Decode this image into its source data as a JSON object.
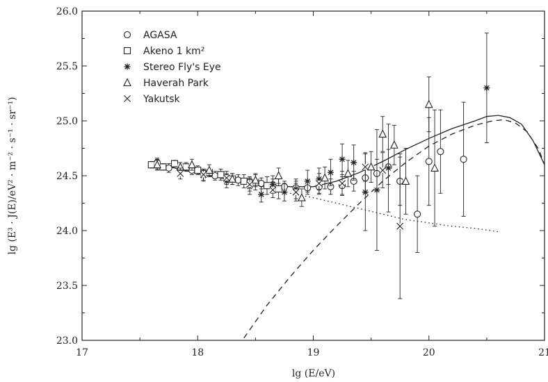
{
  "chart_data": {
    "type": "scatter",
    "xlabel": "lg (E/eV)",
    "ylabel": "lg (E³ · J(E)/eV² · m⁻² · s⁻¹ · sr⁻¹)",
    "xlim": [
      17,
      21
    ],
    "ylim": [
      23.0,
      26.0
    ],
    "x_ticks": [
      "17",
      "18",
      "19",
      "20",
      "21"
    ],
    "y_ticks": [
      "23.0",
      "23.5",
      "24.0",
      "24.5",
      "25.0",
      "25.5",
      "26.0"
    ],
    "legend_position": "top-left",
    "series": [
      {
        "name": "AGASA",
        "marker": "circle",
        "points": [
          {
            "x": 17.65,
            "y": 24.62,
            "err": 0.04
          },
          {
            "x": 17.75,
            "y": 24.57,
            "err": 0.04
          },
          {
            "x": 17.85,
            "y": 24.56,
            "err": 0.04
          },
          {
            "x": 17.95,
            "y": 24.55,
            "err": 0.04
          },
          {
            "x": 18.05,
            "y": 24.52,
            "err": 0.04
          },
          {
            "x": 18.15,
            "y": 24.5,
            "err": 0.04
          },
          {
            "x": 18.25,
            "y": 24.48,
            "err": 0.04
          },
          {
            "x": 18.35,
            "y": 24.46,
            "err": 0.05
          },
          {
            "x": 18.45,
            "y": 24.44,
            "err": 0.05
          },
          {
            "x": 18.55,
            "y": 24.43,
            "err": 0.05
          },
          {
            "x": 18.65,
            "y": 24.42,
            "err": 0.05
          },
          {
            "x": 18.75,
            "y": 24.4,
            "err": 0.05
          },
          {
            "x": 18.85,
            "y": 24.39,
            "err": 0.06
          },
          {
            "x": 18.95,
            "y": 24.39,
            "err": 0.06
          },
          {
            "x": 19.05,
            "y": 24.4,
            "err": 0.07
          },
          {
            "x": 19.15,
            "y": 24.4,
            "err": 0.07
          },
          {
            "x": 19.25,
            "y": 24.41,
            "err": 0.08
          },
          {
            "x": 19.35,
            "y": 24.45,
            "err": 0.09
          },
          {
            "x": 19.45,
            "y": 24.48,
            "err": 0.11
          },
          {
            "x": 19.55,
            "y": 24.52,
            "err": 0.13
          },
          {
            "x": 19.65,
            "y": 24.58,
            "err": 0.16
          },
          {
            "x": 19.75,
            "y": 24.45,
            "err": 0.22
          },
          {
            "x": 19.9,
            "y": 24.15,
            "err": 0.35
          },
          {
            "x": 20.0,
            "y": 24.63,
            "err": 0.4
          },
          {
            "x": 20.1,
            "y": 24.72,
            "err": 0.38
          },
          {
            "x": 20.3,
            "y": 24.65,
            "err": 0.52
          }
        ]
      },
      {
        "name": "Akeno 1 km²",
        "marker": "square",
        "points": [
          {
            "x": 17.6,
            "y": 24.6,
            "err": 0.03
          },
          {
            "x": 17.7,
            "y": 24.58,
            "err": 0.03
          },
          {
            "x": 17.8,
            "y": 24.61,
            "err": 0.03
          },
          {
            "x": 17.9,
            "y": 24.58,
            "err": 0.04
          },
          {
            "x": 18.0,
            "y": 24.55,
            "err": 0.04
          },
          {
            "x": 18.1,
            "y": 24.53,
            "err": 0.04
          },
          {
            "x": 18.2,
            "y": 24.51,
            "err": 0.05
          },
          {
            "x": 18.3,
            "y": 24.47,
            "err": 0.05
          },
          {
            "x": 18.4,
            "y": 24.45,
            "err": 0.06
          },
          {
            "x": 18.5,
            "y": 24.44,
            "err": 0.07
          },
          {
            "x": 18.6,
            "y": 24.41,
            "err": 0.08
          },
          {
            "x": 18.7,
            "y": 24.38,
            "err": 0.09
          }
        ]
      },
      {
        "name": "Stereo Fly's Eye",
        "marker": "asterisk",
        "points": [
          {
            "x": 17.65,
            "y": 24.6,
            "err": 0.05
          },
          {
            "x": 17.85,
            "y": 24.55,
            "err": 0.05
          },
          {
            "x": 18.05,
            "y": 24.5,
            "err": 0.05
          },
          {
            "x": 18.25,
            "y": 24.45,
            "err": 0.06
          },
          {
            "x": 18.45,
            "y": 24.4,
            "err": 0.07
          },
          {
            "x": 18.55,
            "y": 24.33,
            "err": 0.07
          },
          {
            "x": 18.65,
            "y": 24.42,
            "err": 0.08
          },
          {
            "x": 18.75,
            "y": 24.35,
            "err": 0.08
          },
          {
            "x": 18.85,
            "y": 24.38,
            "err": 0.09
          },
          {
            "x": 18.95,
            "y": 24.45,
            "err": 0.1
          },
          {
            "x": 19.05,
            "y": 24.47,
            "err": 0.1
          },
          {
            "x": 19.15,
            "y": 24.53,
            "err": 0.12
          },
          {
            "x": 19.25,
            "y": 24.65,
            "err": 0.14
          },
          {
            "x": 19.35,
            "y": 24.62,
            "err": 0.16
          },
          {
            "x": 19.45,
            "y": 24.35,
            "err": 0.35
          },
          {
            "x": 19.55,
            "y": 24.37,
            "err": 0.55
          },
          {
            "x": 19.65,
            "y": 24.57,
            "err": 0.4
          },
          {
            "x": 20.5,
            "y": 25.3,
            "err": 0.5
          }
        ]
      },
      {
        "name": "Haverah Park",
        "marker": "triangle",
        "points": [
          {
            "x": 17.65,
            "y": 24.6,
            "err": 0.04
          },
          {
            "x": 17.85,
            "y": 24.58,
            "err": 0.04
          },
          {
            "x": 17.95,
            "y": 24.6,
            "err": 0.05
          },
          {
            "x": 18.1,
            "y": 24.55,
            "err": 0.05
          },
          {
            "x": 18.3,
            "y": 24.47,
            "err": 0.05
          },
          {
            "x": 18.5,
            "y": 24.46,
            "err": 0.06
          },
          {
            "x": 18.7,
            "y": 24.5,
            "err": 0.07
          },
          {
            "x": 18.9,
            "y": 24.3,
            "err": 0.08
          },
          {
            "x": 19.1,
            "y": 24.48,
            "err": 0.1
          },
          {
            "x": 19.3,
            "y": 24.52,
            "err": 0.12
          },
          {
            "x": 19.5,
            "y": 24.58,
            "err": 0.14
          },
          {
            "x": 19.6,
            "y": 24.88,
            "err": 0.16
          },
          {
            "x": 19.7,
            "y": 24.78,
            "err": 0.18
          },
          {
            "x": 19.8,
            "y": 24.45,
            "err": 0.3
          },
          {
            "x": 20.0,
            "y": 25.15,
            "err": 0.25
          },
          {
            "x": 20.05,
            "y": 24.57,
            "err": 0.53
          }
        ]
      },
      {
        "name": "Yakutsk",
        "marker": "cross",
        "points": [
          {
            "x": 17.85,
            "y": 24.52,
            "err": 0.05
          },
          {
            "x": 18.05,
            "y": 24.51,
            "err": 0.05
          },
          {
            "x": 18.25,
            "y": 24.48,
            "err": 0.06
          },
          {
            "x": 18.45,
            "y": 24.42,
            "err": 0.06
          },
          {
            "x": 18.65,
            "y": 24.37,
            "err": 0.07
          },
          {
            "x": 18.85,
            "y": 24.35,
            "err": 0.08
          },
          {
            "x": 19.05,
            "y": 24.43,
            "err": 0.09
          },
          {
            "x": 19.25,
            "y": 24.43,
            "err": 0.11
          },
          {
            "x": 19.45,
            "y": 24.58,
            "err": 0.13
          },
          {
            "x": 19.6,
            "y": 24.55,
            "err": 0.16
          },
          {
            "x": 19.75,
            "y": 24.04,
            "err": 0.66
          }
        ]
      }
    ],
    "curves": [
      {
        "style": "solid",
        "points": [
          [
            17.6,
            24.62
          ],
          [
            17.8,
            24.57
          ],
          [
            18.0,
            24.52
          ],
          [
            18.2,
            24.48
          ],
          [
            18.4,
            24.44
          ],
          [
            18.6,
            24.41
          ],
          [
            18.8,
            24.4
          ],
          [
            19.0,
            24.4
          ],
          [
            19.2,
            24.45
          ],
          [
            19.4,
            24.53
          ],
          [
            19.6,
            24.63
          ],
          [
            19.8,
            24.74
          ],
          [
            20.0,
            24.84
          ],
          [
            20.2,
            24.93
          ],
          [
            20.4,
            25.0
          ],
          [
            20.5,
            25.04
          ],
          [
            20.6,
            25.05
          ],
          [
            20.7,
            25.03
          ],
          [
            20.8,
            24.97
          ],
          [
            20.9,
            24.82
          ],
          [
            21.0,
            24.6
          ]
        ]
      },
      {
        "style": "dashed",
        "points": [
          [
            18.4,
            23.02
          ],
          [
            18.6,
            23.32
          ],
          [
            18.8,
            23.58
          ],
          [
            19.0,
            23.82
          ],
          [
            19.2,
            24.04
          ],
          [
            19.4,
            24.25
          ],
          [
            19.6,
            24.45
          ],
          [
            19.8,
            24.62
          ],
          [
            20.0,
            24.77
          ],
          [
            20.2,
            24.88
          ],
          [
            20.4,
            24.96
          ],
          [
            20.55,
            25.0
          ],
          [
            20.65,
            25.01
          ],
          [
            20.75,
            24.98
          ],
          [
            20.85,
            24.9
          ],
          [
            20.95,
            24.74
          ],
          [
            21.0,
            24.6
          ]
        ]
      },
      {
        "style": "dotted",
        "points": [
          [
            18.8,
            24.34
          ],
          [
            19.0,
            24.3
          ],
          [
            19.2,
            24.25
          ],
          [
            19.4,
            24.2
          ],
          [
            19.6,
            24.15
          ],
          [
            19.8,
            24.1
          ],
          [
            20.0,
            24.07
          ],
          [
            20.2,
            24.04
          ],
          [
            20.4,
            24.02
          ],
          [
            20.6,
            23.99
          ]
        ]
      }
    ]
  }
}
